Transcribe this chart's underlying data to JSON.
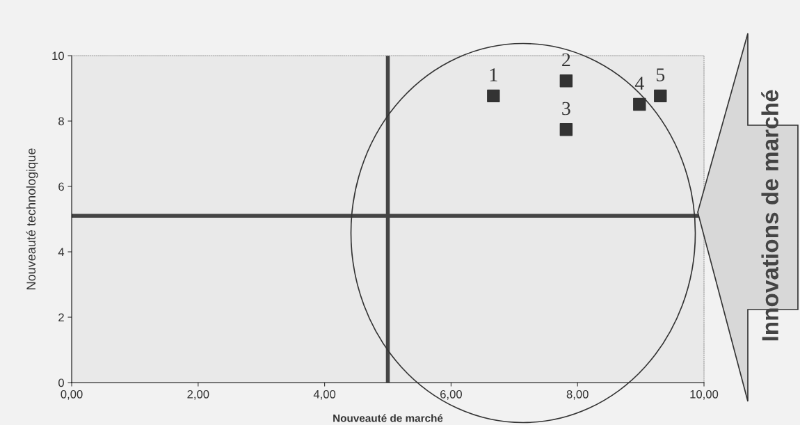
{
  "chart_data": {
    "type": "scatter",
    "xlabel": "Nouveauté de marché",
    "ylabel": "Nouveauté technologique",
    "x": [
      6.67,
      7.82,
      7.82,
      8.98,
      9.31
    ],
    "series": [
      {
        "color": "#333333",
        "values": [
          8.77,
          9.23,
          7.74,
          8.51,
          8.77
        ]
      }
    ],
    "marker": "square",
    "grid": false,
    "legend": false,
    "xlim": [
      0,
      10
    ],
    "ylim": [
      0,
      10
    ],
    "xticks": [
      {
        "value": 0,
        "label": "0,00"
      },
      {
        "value": 2,
        "label": "2,00"
      },
      {
        "value": 4,
        "label": "4,00"
      },
      {
        "value": 6,
        "label": "6,00"
      },
      {
        "value": 8,
        "label": "8,00"
      },
      {
        "value": 10,
        "label": "10,00"
      }
    ],
    "yticks": [
      0,
      2,
      4,
      6,
      8,
      10
    ],
    "ref_lines": [
      {
        "axis": "x",
        "value": 5,
        "color": "#444444"
      },
      {
        "axis": "y",
        "value": 5.1,
        "color": "#444444"
      }
    ],
    "annotations": [
      {
        "text": "1",
        "x": 6.67,
        "y": 8.77
      },
      {
        "text": "2",
        "x": 7.82,
        "y": 9.23
      },
      {
        "text": "3",
        "x": 7.82,
        "y": 7.74
      },
      {
        "text": "4",
        "x": 8.98,
        "y": 8.51
      },
      {
        "text": "5",
        "x": 9.31,
        "y": 8.77
      },
      "Innovations de marché"
    ]
  }
}
